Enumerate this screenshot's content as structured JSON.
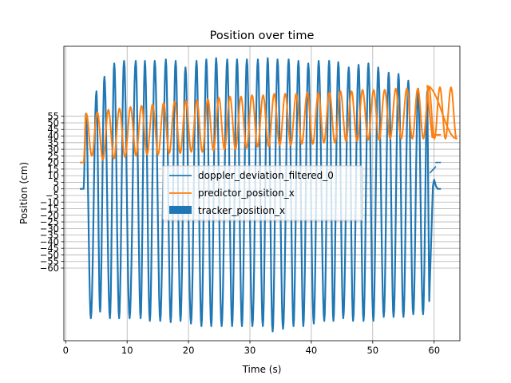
{
  "chart_data": {
    "type": "line",
    "title": "Position over time",
    "xlabel": "Time (s)",
    "ylabel": "Position (cm)",
    "xlim": [
      -0.3,
      64.2
    ],
    "ylim": [
      -115,
      108
    ],
    "x_ticks": [
      0,
      10,
      20,
      30,
      40,
      50,
      60
    ],
    "x_tick_labels": [
      "0",
      "10",
      "20",
      "30",
      "40",
      "50",
      "60"
    ],
    "y_ticks": [
      55,
      50,
      45,
      40,
      35,
      30,
      25,
      20,
      15,
      10,
      5,
      0,
      -5,
      -10,
      -15,
      -20,
      -25,
      -30,
      -35,
      -40,
      -45,
      -50,
      -55,
      -60
    ],
    "y_tick_labels": [
      "55",
      "50",
      "45",
      "40",
      "35",
      "30",
      "25",
      "20",
      "15",
      "10",
      "5",
      "0",
      "−5",
      "−10",
      "−15",
      "−20",
      "−25",
      "−30",
      "−35",
      "−40",
      "−45",
      "−50",
      "−55",
      "−60"
    ],
    "grid": true,
    "legend": "center",
    "series": [
      {
        "name": "doppler_deviation_filtered_0",
        "color": "#1f77b4",
        "style": "line",
        "flat_start": [
          [
            2.3,
            0
          ],
          [
            2.9,
            0
          ]
        ],
        "oscillation": {
          "t_start": 2.9,
          "t_end": 59.2,
          "period": 1.8,
          "peak_times": [
            3.3,
            5.0,
            6.3,
            7.9,
            9.5,
            11.4,
            12.9,
            14.5,
            16.3,
            17.9,
            19.5,
            21.3,
            22.9,
            24.5,
            26.3,
            27.9,
            29.5,
            31.3,
            32.9,
            34.5,
            36.3,
            37.9,
            39.5,
            41.2,
            42.9,
            44.4,
            46.1,
            47.7,
            49.3,
            50.9,
            52.6,
            54.2,
            55.8,
            57.4,
            58.9
          ],
          "peak_values": [
            57,
            74,
            85,
            95,
            97,
            97,
            97,
            97,
            98,
            97,
            92,
            97,
            98,
            99,
            98,
            98,
            98,
            98,
            99,
            98,
            98,
            97,
            95,
            97,
            97,
            96,
            92,
            94,
            95,
            92,
            88,
            87,
            82,
            76,
            74
          ],
          "trough_times": [
            4.1,
            5.6,
            7.2,
            8.7,
            10.4,
            12.2,
            13.7,
            15.4,
            17.1,
            18.7,
            20.4,
            22.1,
            23.7,
            25.4,
            27.1,
            28.7,
            30.4,
            32.1,
            33.7,
            35.4,
            37.1,
            38.7,
            40.4,
            42.1,
            43.6,
            45.2,
            46.8,
            48.5,
            50.1,
            51.8,
            53.4,
            55.0,
            56.6,
            58.2
          ],
          "trough_values": [
            -98,
            -93,
            -98,
            -98,
            -98,
            -98,
            -100,
            -100,
            -101,
            -100,
            -102,
            -104,
            -104,
            -104,
            -104,
            -104,
            -104,
            -104,
            -108,
            -106,
            -104,
            -104,
            -102,
            -100,
            -100,
            -98,
            -100,
            -100,
            -100,
            -97,
            -97,
            -97,
            -95,
            -95
          ]
        },
        "tail": [
          [
            59.2,
            -85
          ],
          [
            59.8,
            2
          ],
          [
            60.0,
            7
          ],
          [
            60.3,
            2
          ],
          [
            60.6,
            0
          ],
          [
            61.1,
            0
          ]
        ],
        "stray_segments": [
          [
            [
              59.3,
              12
            ],
            [
              59.9,
              15
            ],
            [
              60.3,
              17
            ]
          ],
          [
            [
              60.2,
              20
            ],
            [
              61.1,
              20
            ]
          ]
        ]
      },
      {
        "name": "predictor_position_x",
        "color": "#ff7f0e",
        "style": "line",
        "flat_start": [
          [
            2.3,
            20
          ],
          [
            2.9,
            20
          ]
        ],
        "oscillation": {
          "t_start": 2.9,
          "t_end": 59.2,
          "period": 1.8,
          "low_values": [
            25,
            22,
            23,
            24,
            25,
            26,
            26,
            27,
            27,
            28,
            28,
            29,
            30,
            30,
            31,
            32,
            32,
            33,
            33,
            34,
            34,
            35,
            35,
            36,
            36,
            37,
            37,
            38,
            38,
            38,
            38,
            38,
            38,
            38
          ],
          "high_values": [
            57,
            58,
            60,
            61,
            62,
            63,
            64,
            65,
            66,
            67,
            67,
            68,
            69,
            70,
            70,
            71,
            71,
            72,
            72,
            72,
            73,
            73,
            73,
            74,
            74,
            75,
            75,
            75,
            76,
            76,
            76,
            77,
            77,
            77
          ],
          "final_peak": [
            58.9,
            78
          ]
        },
        "tail": [
          [
            59.2,
            60
          ],
          [
            59.7,
            39
          ],
          [
            60.1,
            41
          ],
          [
            61.1,
            41
          ]
        ]
      },
      {
        "name": "tracker_position_x",
        "color": "#1f77b4",
        "style": "band"
      }
    ]
  }
}
